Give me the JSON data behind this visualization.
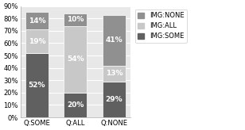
{
  "categories": [
    "Q:SOME",
    "Q:ALL",
    "Q:NONE"
  ],
  "series": {
    "IMG:SOME": [
      52,
      20,
      29
    ],
    "IMG:ALL": [
      19,
      54,
      13
    ],
    "IMG:NONE": [
      14,
      10,
      41
    ]
  },
  "colors": {
    "IMG:SOME": "#606060",
    "IMG:ALL": "#c8c8c8",
    "IMG:NONE": "#909090"
  },
  "ylim": [
    0,
    90
  ],
  "yticks": [
    0,
    10,
    20,
    30,
    40,
    50,
    60,
    70,
    80,
    90
  ],
  "yticklabels": [
    "0%",
    "10%",
    "20%",
    "30%",
    "40%",
    "50%",
    "60%",
    "70%",
    "80%",
    "90%"
  ],
  "legend_order": [
    "IMG:NONE",
    "IMG:ALL",
    "IMG:SOME"
  ],
  "bar_width": 0.6,
  "background_color": "#ffffff",
  "plot_bg_color": "#e8e8e8",
  "grid_color": "#ffffff",
  "text_color": "#000000",
  "label_fontsize": 6.5,
  "tick_fontsize": 6.0,
  "legend_fontsize": 6.0
}
